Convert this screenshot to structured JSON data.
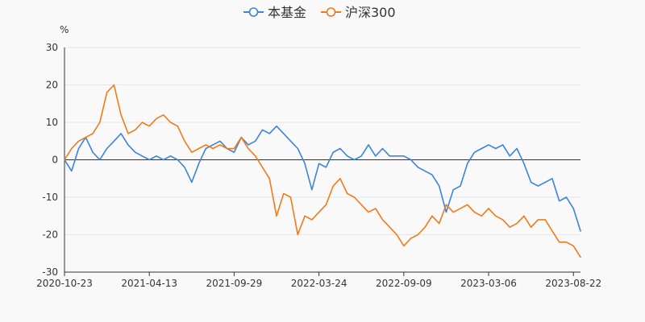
{
  "chart_data": {
    "type": "line",
    "ylabel": "%",
    "ylim": [
      -30,
      30
    ],
    "y_ticks": [
      "30",
      "20",
      "10",
      "0",
      "-10",
      "-20",
      "-30"
    ],
    "x_tick_labels": [
      "2020-10-23",
      "2021-04-13",
      "2021-09-29",
      "2022-03-24",
      "2022-09-09",
      "2023-03-06",
      "2023-08-22"
    ],
    "x_tick_index": [
      0,
      12,
      24,
      36,
      48,
      60,
      72
    ],
    "colors": {
      "fund": "#3a84dc",
      "index": "#f37a17"
    },
    "series": [
      {
        "name": "本基金",
        "key": "fund",
        "values": [
          0,
          -3,
          3,
          6,
          2,
          0,
          3,
          5,
          7,
          4,
          2,
          1,
          0,
          1,
          0,
          1,
          0,
          -2,
          -6,
          -1,
          3,
          4,
          5,
          3,
          2,
          6,
          4,
          5,
          8,
          7,
          9,
          7,
          5,
          3,
          -1,
          -8,
          -1,
          -2,
          2,
          3,
          1,
          0,
          1,
          4,
          1,
          3,
          1,
          1,
          1,
          0,
          -2,
          -3,
          -4,
          -7,
          -14,
          -8,
          -7,
          -1,
          2,
          3,
          4,
          3,
          4,
          1,
          3,
          -1,
          -6,
          -7,
          -6,
          -5,
          -11,
          -10,
          -13,
          -19
        ]
      },
      {
        "name": "沪深300",
        "key": "index",
        "values": [
          0,
          3,
          5,
          6,
          7,
          10,
          18,
          20,
          12,
          7,
          8,
          10,
          9,
          11,
          12,
          10,
          9,
          5,
          2,
          3,
          4,
          3,
          4,
          3,
          3,
          6,
          3,
          1,
          -2,
          -5,
          -15,
          -9,
          -10,
          -20,
          -15,
          -16,
          -14,
          -12,
          -7,
          -5,
          -9,
          -10,
          -12,
          -14,
          -13,
          -16,
          -18,
          -20,
          -23,
          -21,
          -20,
          -18,
          -15,
          -17,
          -12,
          -14,
          -13,
          -12,
          -14,
          -15,
          -13,
          -15,
          -16,
          -18,
          -17,
          -15,
          -18,
          -16,
          -16,
          -19,
          -22,
          -22,
          -23,
          -26
        ]
      }
    ]
  }
}
